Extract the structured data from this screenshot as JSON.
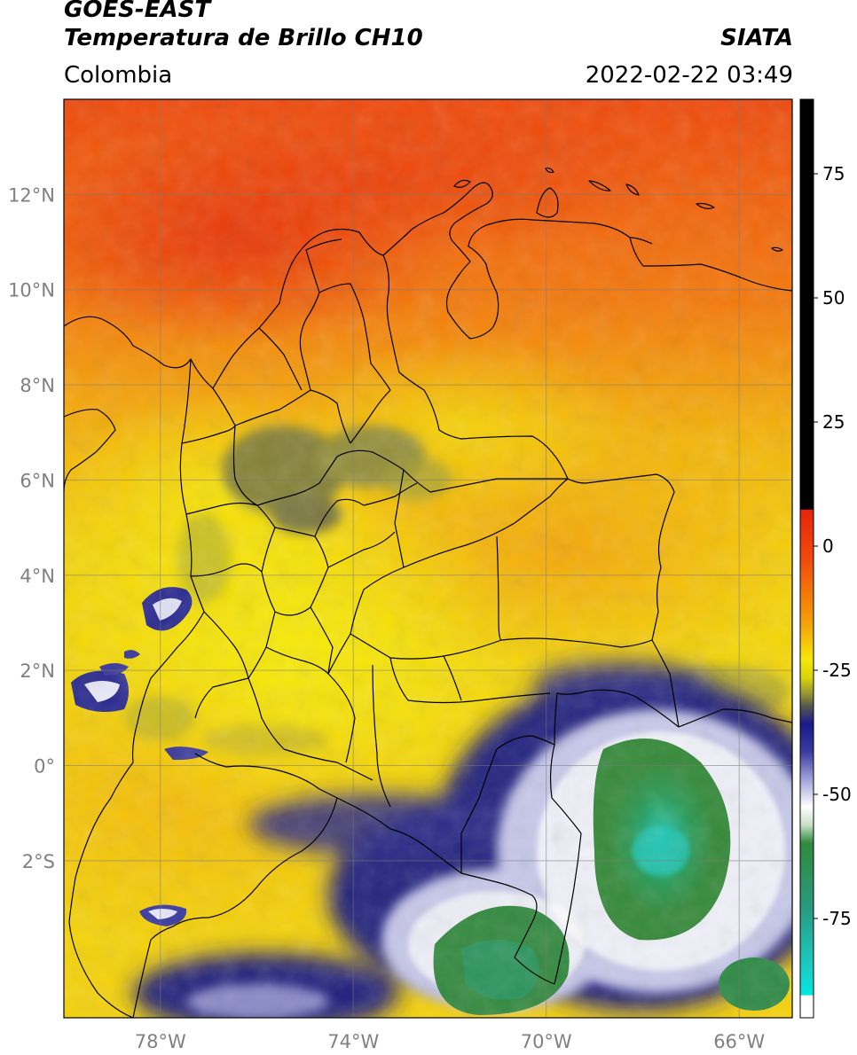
{
  "header": {
    "satellite": "GOES-EAST",
    "product": "Temperatura de Brillo CH10",
    "region": "Colombia",
    "organization": "SIATA",
    "datetime": "2022-02-22 03:49"
  },
  "map": {
    "lon_range": [
      -80,
      -64.9
    ],
    "lat_range": [
      -5.3,
      14
    ],
    "lat_ticks": [
      "12°N",
      "10°N",
      "8°N",
      "6°N",
      "4°N",
      "2°N",
      "0°",
      "2°S"
    ],
    "lat_tick_values": [
      12,
      10,
      8,
      6,
      4,
      2,
      0,
      -2
    ],
    "lon_ticks": [
      "78°W",
      "74°W",
      "70°W",
      "66°W"
    ],
    "lon_tick_values": [
      -78,
      -74,
      -70,
      -66
    ],
    "gridlines": true
  },
  "colorbar": {
    "labels": [
      "75",
      "50",
      "25",
      "0",
      "-25",
      "-50",
      "-75"
    ],
    "values": [
      75,
      50,
      25,
      0,
      -25,
      -50,
      -75
    ],
    "range": [
      -95,
      90
    ],
    "colors": {
      "black": "#000000",
      "red": "#e8240a",
      "orange": "#f58a0c",
      "yellow": "#f5e80a",
      "olive": "#7a7a3a",
      "navy": "#1a1a8a",
      "white": "#ffffff",
      "green": "#2e8a3c",
      "cyan": "#00e8e0"
    }
  }
}
